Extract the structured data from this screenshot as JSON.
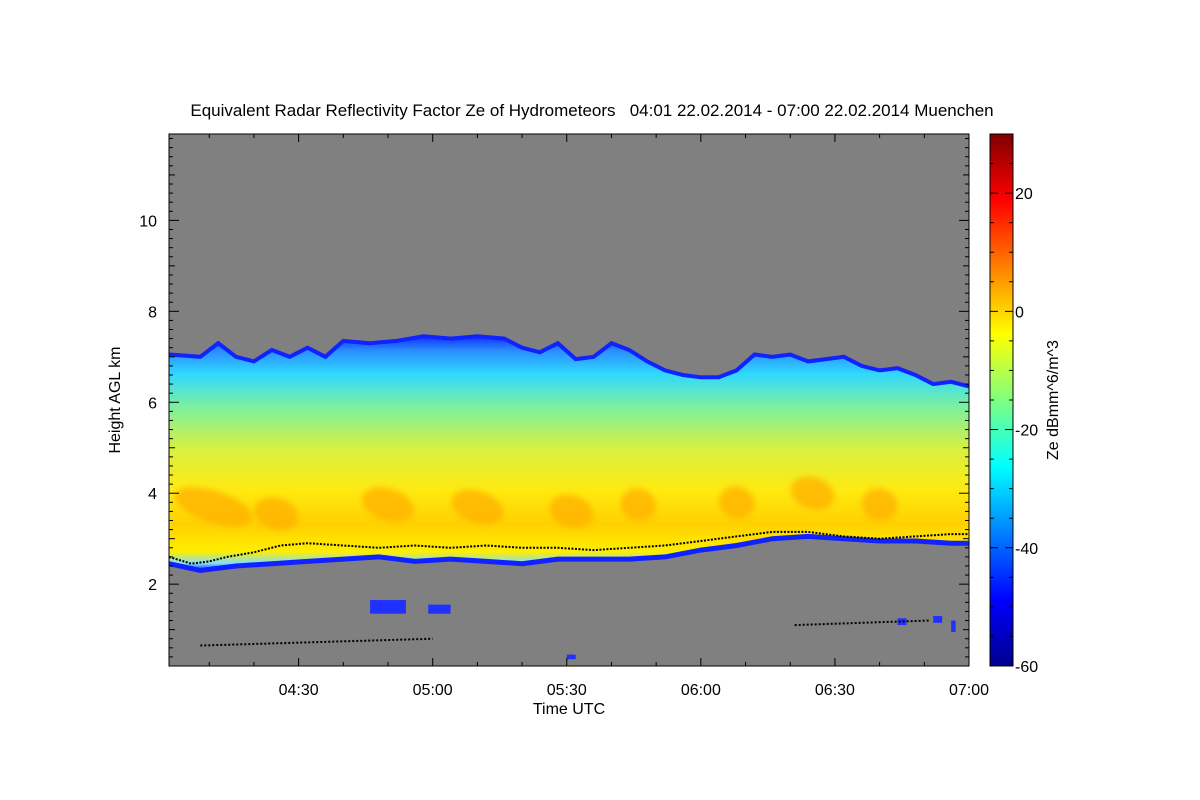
{
  "chart_data": {
    "type": "heatmap",
    "title": "Equivalent Radar Reflectivity Factor Ze of Hydrometeors   04:01 22.02.2014 - 07:00 22.02.2014 Muenchen",
    "xlabel": "Time UTC",
    "ylabel": "Height AGL km",
    "colorbar_label": "Ze dBmm^6/m^3",
    "x_range_minutes": [
      1,
      180
    ],
    "x_tick_labels": [
      "04:30",
      "05:00",
      "05:30",
      "06:00",
      "06:30",
      "07:00"
    ],
    "x_tick_minutes": [
      30,
      60,
      90,
      120,
      150,
      180
    ],
    "ylim": [
      0.2,
      11.9
    ],
    "y_ticks": [
      2,
      4,
      6,
      8,
      10
    ],
    "colorbar_range": [
      -60,
      30
    ],
    "colorbar_ticks": [
      -60,
      -40,
      -20,
      0,
      20
    ],
    "background_color": "#808080",
    "colormap": [
      "#00008c",
      "#0000ff",
      "#0080ff",
      "#00ffff",
      "#80ff80",
      "#ffff00",
      "#ff8000",
      "#ff0000",
      "#800000"
    ],
    "cloud_top_km": [
      [
        1,
        7.05
      ],
      [
        8,
        7.0
      ],
      [
        12,
        7.3
      ],
      [
        16,
        7.0
      ],
      [
        20,
        6.9
      ],
      [
        24,
        7.15
      ],
      [
        28,
        7.0
      ],
      [
        32,
        7.2
      ],
      [
        36,
        7.0
      ],
      [
        40,
        7.35
      ],
      [
        46,
        7.3
      ],
      [
        52,
        7.35
      ],
      [
        58,
        7.45
      ],
      [
        64,
        7.4
      ],
      [
        70,
        7.45
      ],
      [
        76,
        7.4
      ],
      [
        80,
        7.2
      ],
      [
        84,
        7.1
      ],
      [
        88,
        7.3
      ],
      [
        92,
        6.95
      ],
      [
        96,
        7.0
      ],
      [
        100,
        7.3
      ],
      [
        104,
        7.15
      ],
      [
        108,
        6.9
      ],
      [
        112,
        6.7
      ],
      [
        116,
        6.6
      ],
      [
        120,
        6.55
      ],
      [
        124,
        6.55
      ],
      [
        128,
        6.7
      ],
      [
        132,
        7.05
      ],
      [
        136,
        7.0
      ],
      [
        140,
        7.05
      ],
      [
        144,
        6.9
      ],
      [
        148,
        6.95
      ],
      [
        152,
        7.0
      ],
      [
        156,
        6.8
      ],
      [
        160,
        6.7
      ],
      [
        164,
        6.75
      ],
      [
        168,
        6.6
      ],
      [
        172,
        6.4
      ],
      [
        176,
        6.45
      ],
      [
        180,
        6.35
      ]
    ],
    "cloud_base_km": [
      [
        1,
        2.45
      ],
      [
        8,
        2.3
      ],
      [
        16,
        2.4
      ],
      [
        24,
        2.45
      ],
      [
        32,
        2.5
      ],
      [
        40,
        2.55
      ],
      [
        48,
        2.6
      ],
      [
        56,
        2.5
      ],
      [
        64,
        2.55
      ],
      [
        72,
        2.5
      ],
      [
        80,
        2.45
      ],
      [
        88,
        2.55
      ],
      [
        96,
        2.55
      ],
      [
        104,
        2.55
      ],
      [
        112,
        2.6
      ],
      [
        120,
        2.75
      ],
      [
        128,
        2.85
      ],
      [
        136,
        3.0
      ],
      [
        144,
        3.05
      ],
      [
        152,
        3.0
      ],
      [
        160,
        2.95
      ],
      [
        168,
        2.95
      ],
      [
        176,
        2.9
      ],
      [
        180,
        2.9
      ]
    ],
    "ceilometer_base_km": [
      [
        1,
        2.6
      ],
      [
        6,
        2.45
      ],
      [
        10,
        2.5
      ],
      [
        14,
        2.6
      ],
      [
        20,
        2.7
      ],
      [
        26,
        2.85
      ],
      [
        32,
        2.9
      ],
      [
        40,
        2.85
      ],
      [
        48,
        2.8
      ],
      [
        56,
        2.85
      ],
      [
        64,
        2.8
      ],
      [
        72,
        2.85
      ],
      [
        80,
        2.8
      ],
      [
        88,
        2.8
      ],
      [
        96,
        2.75
      ],
      [
        104,
        2.8
      ],
      [
        112,
        2.85
      ],
      [
        120,
        2.95
      ],
      [
        128,
        3.05
      ],
      [
        136,
        3.15
      ],
      [
        144,
        3.15
      ],
      [
        152,
        3.05
      ],
      [
        160,
        3.0
      ],
      [
        168,
        3.05
      ],
      [
        176,
        3.1
      ],
      [
        180,
        3.1
      ]
    ],
    "low_echo_patches": [
      {
        "t": [
          46,
          54
        ],
        "h": [
          1.35,
          1.65
        ]
      },
      {
        "t": [
          59,
          64
        ],
        "h": [
          1.35,
          1.55
        ]
      },
      {
        "t": [
          90,
          92
        ],
        "h": [
          0.35,
          0.45
        ]
      },
      {
        "t": [
          164,
          166
        ],
        "h": [
          1.1,
          1.25
        ]
      },
      {
        "t": [
          172,
          174
        ],
        "h": [
          1.15,
          1.3
        ]
      },
      {
        "t": [
          176,
          177
        ],
        "h": [
          0.95,
          1.2
        ]
      }
    ],
    "low_ceilometer_traces": [
      {
        "t": [
          8,
          60
        ],
        "h": [
          0.65,
          0.8
        ]
      },
      {
        "t": [
          141,
          171
        ],
        "h": [
          1.1,
          1.2
        ]
      }
    ]
  }
}
